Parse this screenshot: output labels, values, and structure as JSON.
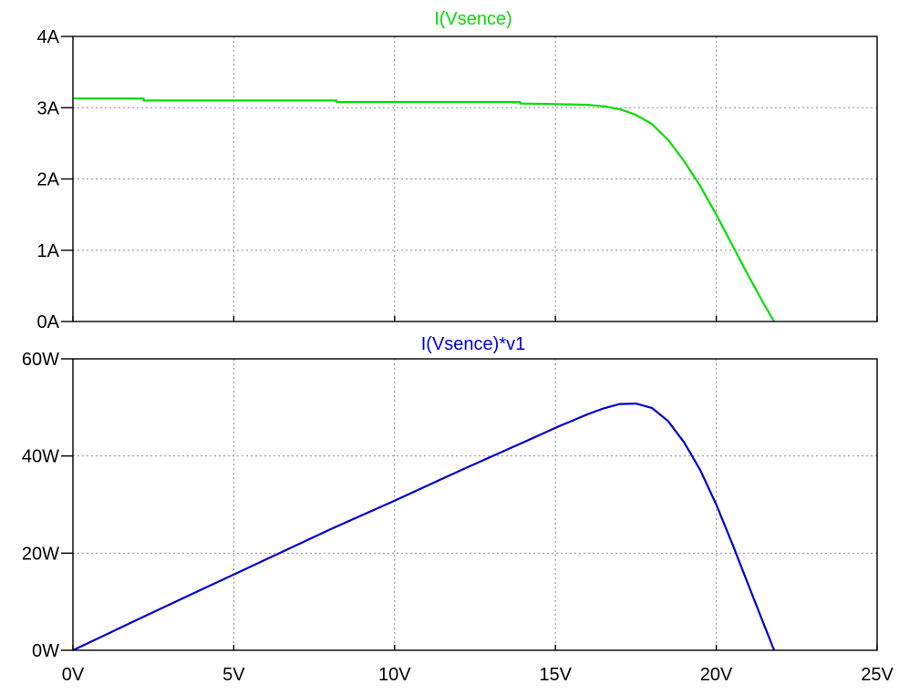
{
  "chart_data": [
    {
      "type": "line",
      "title": "I(Vsence)",
      "xlabel": "",
      "ylabel": "",
      "xlim": [
        0,
        25
      ],
      "ylim": [
        0,
        4
      ],
      "x_tick_values": [
        0,
        5,
        10,
        15,
        20,
        25
      ],
      "y_ticks": [
        {
          "value": 0,
          "label": "0A"
        },
        {
          "value": 1,
          "label": "1A"
        },
        {
          "value": 2,
          "label": "2A"
        },
        {
          "value": 3,
          "label": "3A"
        },
        {
          "value": 4,
          "label": "4A"
        }
      ],
      "grid": true,
      "color": "#00e000",
      "series": [
        {
          "x": [
            0,
            2.2,
            2.2,
            8.2,
            8.2,
            13.9,
            13.9,
            15.0,
            16.0,
            16.5,
            17.0,
            17.5,
            18.0,
            18.5,
            19.0,
            19.5,
            20.0,
            20.5,
            21.0,
            21.5,
            21.8
          ],
          "y": [
            3.13,
            3.13,
            3.1,
            3.1,
            3.08,
            3.08,
            3.06,
            3.05,
            3.04,
            3.02,
            2.98,
            2.9,
            2.77,
            2.55,
            2.25,
            1.9,
            1.5,
            1.07,
            0.64,
            0.23,
            0.0
          ]
        }
      ]
    },
    {
      "type": "line",
      "title": "I(Vsence)*v1",
      "xlabel": "",
      "ylabel": "",
      "xlim": [
        0,
        25
      ],
      "ylim": [
        0,
        60
      ],
      "x_tick_values": [
        0,
        5,
        10,
        15,
        20,
        25
      ],
      "y_ticks": [
        {
          "value": 0,
          "label": "0W"
        },
        {
          "value": 20,
          "label": "20W"
        },
        {
          "value": 40,
          "label": "40W"
        },
        {
          "value": 60,
          "label": "60W"
        }
      ],
      "x_ticks": [
        {
          "value": 0,
          "label": "0V"
        },
        {
          "value": 5,
          "label": "5V"
        },
        {
          "value": 10,
          "label": "10V"
        },
        {
          "value": 15,
          "label": "15V"
        },
        {
          "value": 20,
          "label": "20V"
        },
        {
          "value": 25,
          "label": "25V"
        }
      ],
      "grid": true,
      "color": "#0000d0",
      "series": [
        {
          "x": [
            0,
            2,
            4,
            6,
            8,
            10,
            12,
            14,
            15,
            16,
            16.5,
            17,
            17.5,
            18,
            18.5,
            19,
            19.5,
            20,
            20.5,
            21,
            21.5,
            21.8
          ],
          "y": [
            0,
            6.3,
            12.5,
            18.7,
            24.9,
            30.8,
            36.9,
            42.8,
            45.8,
            48.6,
            49.8,
            50.7,
            50.8,
            49.9,
            47.2,
            42.8,
            37.1,
            30.0,
            21.9,
            13.4,
            5.0,
            0.0
          ]
        }
      ]
    }
  ]
}
